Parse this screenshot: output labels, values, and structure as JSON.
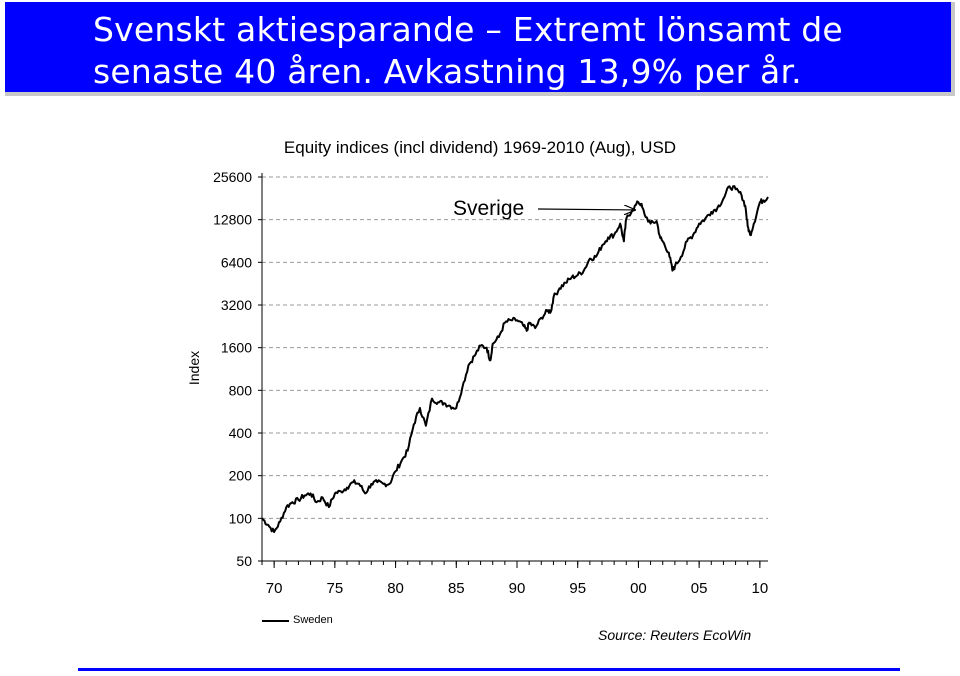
{
  "slide": {
    "title_line1": "Svenskt aktiesparande – Extremt lönsamt de",
    "title_line2": "senaste 40 åren. Avkastning 13,9% per år.",
    "source": "Source: Reuters EcoWin",
    "accent_color": "#0000ff"
  },
  "chart_data": {
    "type": "line",
    "title": "Equity indices (incl dividend) 1969-2010 (Aug), USD",
    "xlabel": "",
    "ylabel": "Index",
    "y_scale": "log2",
    "ylim": [
      50,
      25600
    ],
    "xlim": [
      1969,
      2010.67
    ],
    "x_tick_values": [
      1970,
      1975,
      1980,
      1985,
      1990,
      1995,
      2000,
      2005,
      2010
    ],
    "x_tick_labels": [
      "70",
      "75",
      "80",
      "85",
      "90",
      "95",
      "00",
      "05",
      "10"
    ],
    "y_ticks": [
      50,
      100,
      200,
      400,
      800,
      1600,
      3200,
      6400,
      12800,
      25600
    ],
    "grid": "horizontal-dashed",
    "legend_position": "bottom-left",
    "annotation": {
      "text": "Sverige",
      "points_to": [
        2000.2,
        16000
      ]
    },
    "series": [
      {
        "name": "Sweden",
        "color": "#000000",
        "x": [
          1969.0,
          1969.5,
          1970.0,
          1970.5,
          1971.0,
          1971.5,
          1972.0,
          1972.5,
          1973.0,
          1973.5,
          1974.0,
          1974.5,
          1975.0,
          1975.5,
          1976.0,
          1976.5,
          1977.0,
          1977.5,
          1978.0,
          1978.5,
          1979.0,
          1979.5,
          1980.0,
          1980.5,
          1981.0,
          1981.5,
          1982.0,
          1982.5,
          1983.0,
          1983.5,
          1984.0,
          1984.5,
          1985.0,
          1985.5,
          1986.0,
          1986.5,
          1987.0,
          1987.5,
          1987.8,
          1988.0,
          1988.5,
          1989.0,
          1989.5,
          1990.0,
          1990.5,
          1990.8,
          1991.0,
          1991.5,
          1992.0,
          1992.5,
          1992.8,
          1993.0,
          1993.5,
          1994.0,
          1994.5,
          1995.0,
          1995.5,
          1996.0,
          1996.5,
          1997.0,
          1997.5,
          1998.0,
          1998.5,
          1998.8,
          1999.0,
          1999.5,
          2000.0,
          2000.2,
          2000.5,
          2001.0,
          2001.5,
          2001.8,
          2002.0,
          2002.5,
          2002.8,
          2003.0,
          2003.5,
          2004.0,
          2004.5,
          2005.0,
          2005.5,
          2006.0,
          2006.5,
          2007.0,
          2007.5,
          2008.0,
          2008.5,
          2008.8,
          2009.0,
          2009.2,
          2009.5,
          2010.0,
          2010.3,
          2010.67
        ],
        "values": [
          100,
          90,
          80,
          95,
          120,
          130,
          135,
          145,
          150,
          130,
          140,
          120,
          150,
          155,
          165,
          180,
          175,
          150,
          175,
          180,
          175,
          175,
          215,
          255,
          300,
          460,
          600,
          450,
          700,
          660,
          650,
          620,
          600,
          840,
          1200,
          1400,
          1650,
          1600,
          1300,
          1700,
          1900,
          2400,
          2500,
          2500,
          2300,
          2100,
          2400,
          2200,
          2600,
          2900,
          2900,
          3600,
          4200,
          4600,
          5000,
          5200,
          5600,
          6800,
          7000,
          8400,
          9600,
          10000,
          12000,
          9000,
          13000,
          15000,
          17000,
          16500,
          14000,
          12000,
          12500,
          9500,
          9000,
          7500,
          5600,
          6000,
          7000,
          9000,
          10000,
          12000,
          13000,
          14500,
          15500,
          18000,
          22000,
          21000,
          19000,
          16000,
          11500,
          10000,
          12000,
          17000,
          17500,
          18500
        ]
      }
    ]
  }
}
